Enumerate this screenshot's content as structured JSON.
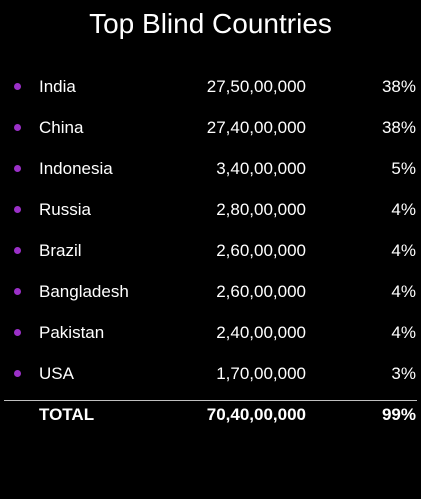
{
  "title": "Top Blind Countries",
  "rows": [
    {
      "country": "India",
      "value": "27,50,00,000",
      "pct": "38%"
    },
    {
      "country": "China",
      "value": "27,40,00,000",
      "pct": "38%"
    },
    {
      "country": "Indonesia",
      "value": "3,40,00,000",
      "pct": "5%"
    },
    {
      "country": "Russia",
      "value": "2,80,00,000",
      "pct": "4%"
    },
    {
      "country": "Brazil",
      "value": "2,60,00,000",
      "pct": "4%"
    },
    {
      "country": "Bangladesh",
      "value": "2,60,00,000",
      "pct": "4%"
    },
    {
      "country": "Pakistan",
      "value": "2,40,00,000",
      "pct": "4%"
    },
    {
      "country": "USA",
      "value": "1,70,00,000",
      "pct": "3%"
    }
  ],
  "total": {
    "label": "TOTAL",
    "value": "70,40,00,000",
    "pct": "99%"
  },
  "colors": {
    "background": "#000000",
    "text": "#ffffff",
    "bullet": "#9b30c8",
    "divider": "#bfbfbf"
  }
}
